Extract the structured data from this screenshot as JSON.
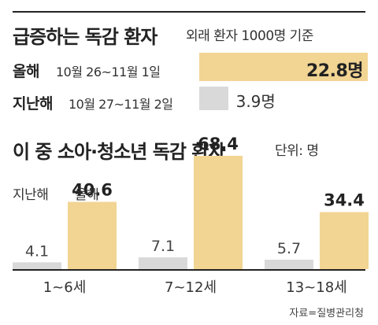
{
  "top_section": {
    "title": "급증하는 독감 환자",
    "subtitle": "외래 환자 1000명 기준"
  },
  "bottom_section": {
    "title": "이 중 소아·청소년 독감 환자",
    "unit_label": "단위: 명"
  },
  "source": "자료=질병관리청",
  "colors": {
    "this_year": "#f2d493",
    "last_year": "#d9d9d9",
    "text": "#222222"
  },
  "chart_data": [
    {
      "type": "bar",
      "orientation": "horizontal",
      "title": "급증하는 독감 환자",
      "subtitle": "외래 환자 1000명 기준",
      "rows": [
        {
          "label": "올해",
          "period": "10월 26~11월 1일",
          "value": 22.8,
          "value_label": "22.8명",
          "emphasis": true
        },
        {
          "label": "지난해",
          "period": "10월 27~11월 2일",
          "value": 3.9,
          "value_label": "3.9명",
          "emphasis": false
        }
      ]
    },
    {
      "type": "bar",
      "orientation": "vertical",
      "title": "이 중 소아·청소년 독감 환자",
      "unit": "단위: 명",
      "categories": [
        "1~6세",
        "7~12세",
        "13~18세"
      ],
      "series": [
        {
          "name": "지난해",
          "values": [
            4.1,
            7.1,
            5.7
          ],
          "labels": [
            "4.1",
            "7.1",
            "5.7"
          ]
        },
        {
          "name": "올해",
          "values": [
            40.6,
            68.4,
            34.4
          ],
          "labels": [
            "40.6",
            "68.4",
            "34.4"
          ]
        }
      ],
      "legend": "top-left"
    }
  ]
}
